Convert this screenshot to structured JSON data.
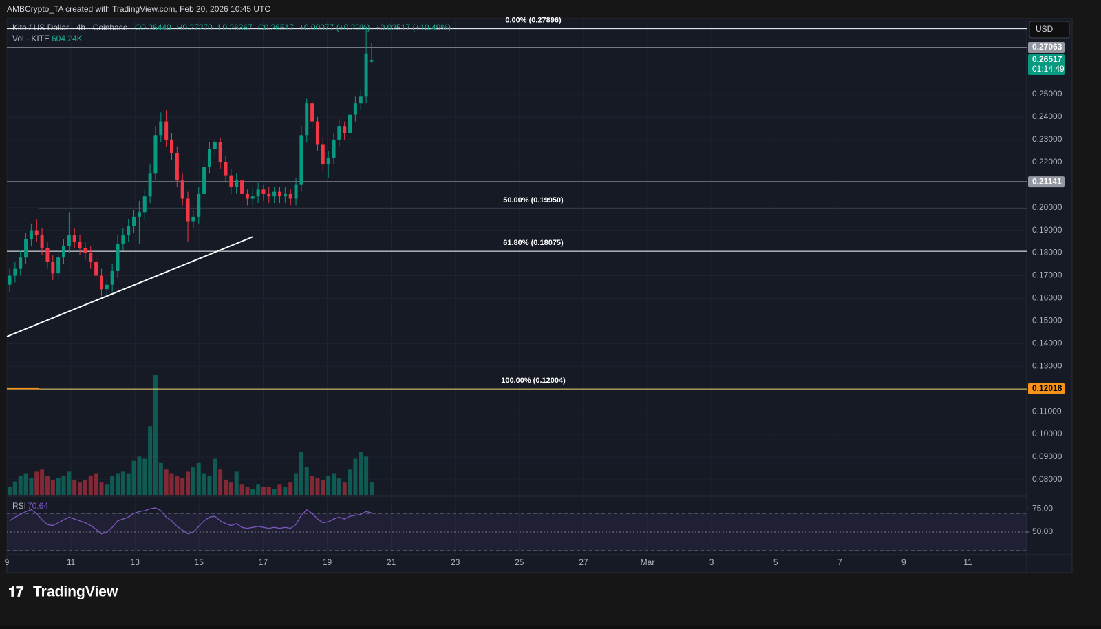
{
  "header": {
    "credit": "AMBCrypto_TA created with TradingView.com, Feb 20, 2026 10:45 UTC",
    "symbol": "Kite / US Dollar · 4h · Coinbase",
    "ohlc": [
      "O0.26440",
      "H0.27270",
      "L0.26367",
      "C0.26517",
      "+0.00077 (+0.29%)",
      "+0.02517 (+10.49%)"
    ],
    "volume_title": "Vol · KITE",
    "currency": "USD"
  },
  "chart_data": {
    "type": "candlestick",
    "open": [
      0.166,
      0.17,
      0.173,
      0.178,
      0.186,
      0.19,
      0.188,
      0.182,
      0.176,
      0.171,
      0.178,
      0.183,
      0.188,
      0.185,
      0.182,
      0.18,
      0.176,
      0.17,
      0.164,
      0.166,
      0.172,
      0.184,
      0.188,
      0.192,
      0.196,
      0.198,
      0.205,
      0.215,
      0.232,
      0.238,
      0.23,
      0.224,
      0.212,
      0.204,
      0.194,
      0.196,
      0.206,
      0.218,
      0.226,
      0.229,
      0.22,
      0.214,
      0.209,
      0.212,
      0.206,
      0.204,
      0.205,
      0.208,
      0.206,
      0.205,
      0.207,
      0.205,
      0.206,
      0.204,
      0.21,
      0.232,
      0.246,
      0.238,
      0.228,
      0.219,
      0.222,
      0.23,
      0.236,
      0.233,
      0.241,
      0.246,
      0.249,
      0.2644
    ],
    "high": [
      0.173,
      0.176,
      0.181,
      0.189,
      0.193,
      0.195,
      0.191,
      0.185,
      0.179,
      0.181,
      0.186,
      0.198,
      0.191,
      0.188,
      0.185,
      0.183,
      0.179,
      0.173,
      0.169,
      0.175,
      0.188,
      0.191,
      0.195,
      0.199,
      0.203,
      0.208,
      0.219,
      0.236,
      0.242,
      0.243,
      0.233,
      0.227,
      0.215,
      0.207,
      0.199,
      0.209,
      0.221,
      0.229,
      0.23,
      0.231,
      0.223,
      0.217,
      0.215,
      0.214,
      0.208,
      0.209,
      0.211,
      0.21,
      0.209,
      0.209,
      0.209,
      0.209,
      0.208,
      0.213,
      0.236,
      0.248,
      0.247,
      0.24,
      0.231,
      0.225,
      0.233,
      0.239,
      0.238,
      0.244,
      0.249,
      0.252,
      0.27896,
      0.2727
    ],
    "low": [
      0.163,
      0.167,
      0.17,
      0.175,
      0.183,
      0.185,
      0.179,
      0.173,
      0.168,
      0.168,
      0.175,
      0.18,
      0.182,
      0.179,
      0.177,
      0.173,
      0.167,
      0.161,
      0.16,
      0.163,
      0.169,
      0.181,
      0.185,
      0.189,
      0.184,
      0.195,
      0.202,
      0.212,
      0.229,
      0.227,
      0.221,
      0.209,
      0.201,
      0.185,
      0.191,
      0.193,
      0.203,
      0.215,
      0.223,
      0.217,
      0.211,
      0.206,
      0.206,
      0.2,
      0.201,
      0.201,
      0.202,
      0.203,
      0.202,
      0.202,
      0.202,
      0.202,
      0.201,
      0.201,
      0.207,
      0.229,
      0.235,
      0.225,
      0.216,
      0.213,
      0.219,
      0.227,
      0.23,
      0.229,
      0.238,
      0.243,
      0.246,
      0.26367
    ],
    "close": [
      0.17,
      0.173,
      0.178,
      0.186,
      0.19,
      0.188,
      0.182,
      0.176,
      0.171,
      0.178,
      0.183,
      0.188,
      0.185,
      0.182,
      0.18,
      0.176,
      0.17,
      0.164,
      0.166,
      0.172,
      0.184,
      0.188,
      0.192,
      0.196,
      0.198,
      0.205,
      0.215,
      0.232,
      0.238,
      0.23,
      0.224,
      0.212,
      0.204,
      0.194,
      0.196,
      0.206,
      0.218,
      0.226,
      0.229,
      0.22,
      0.214,
      0.209,
      0.212,
      0.206,
      0.204,
      0.205,
      0.208,
      0.206,
      0.205,
      0.207,
      0.205,
      0.206,
      0.204,
      0.21,
      0.232,
      0.246,
      0.238,
      0.228,
      0.219,
      0.222,
      0.23,
      0.236,
      0.233,
      0.241,
      0.246,
      0.249,
      0.268,
      0.26517
    ],
    "volume": [
      400000,
      650000,
      900000,
      1000000,
      800000,
      1100000,
      1200000,
      900000,
      700000,
      800000,
      900000,
      1100000,
      700000,
      600000,
      700000,
      900000,
      1000000,
      600000,
      500000,
      900000,
      1000000,
      1100000,
      1000000,
      1600000,
      1800000,
      1700000,
      3200000,
      5560000,
      1500000,
      1200000,
      1000000,
      900000,
      800000,
      1100000,
      1300000,
      1500000,
      1000000,
      900000,
      1700000,
      1200000,
      700000,
      600000,
      1100000,
      500000,
      400000,
      300000,
      500000,
      400000,
      400000,
      300000,
      500000,
      400000,
      600000,
      1000000,
      2000000,
      1300000,
      900000,
      800000,
      700000,
      900000,
      1000000,
      800000,
      600000,
      1200000,
      1700000,
      2000000,
      1800000,
      604240
    ],
    "volume_label": "604.24K",
    "up_color": "#089981",
    "down_color": "#f23645",
    "ylim": [
      0.073,
      0.2834
    ],
    "yticks": [
      {
        "value": 0.08,
        "label": "0.08000"
      },
      {
        "value": 0.09,
        "label": "0.09000"
      },
      {
        "value": 0.1,
        "label": "0.10000"
      },
      {
        "value": 0.11,
        "label": "0.11000"
      },
      {
        "value": 0.12,
        "label": "0.12000"
      },
      {
        "value": 0.13,
        "label": "0.13000"
      },
      {
        "value": 0.14,
        "label": "0.14000"
      },
      {
        "value": 0.15,
        "label": "0.15000"
      },
      {
        "value": 0.16,
        "label": "0.16000"
      },
      {
        "value": 0.17,
        "label": "0.17000"
      },
      {
        "value": 0.18,
        "label": "0.18000"
      },
      {
        "value": 0.19,
        "label": "0.19000"
      },
      {
        "value": 0.2,
        "label": "0.20000"
      },
      {
        "value": 0.22,
        "label": "0.22000"
      },
      {
        "value": 0.23,
        "label": "0.23000"
      },
      {
        "value": 0.24,
        "label": "0.24000"
      },
      {
        "value": 0.25,
        "label": "0.25000"
      }
    ],
    "x_labels": [
      "9",
      "11",
      "13",
      "15",
      "17",
      "19",
      "21",
      "23",
      "25",
      "27",
      "Mar",
      "3",
      "5",
      "7",
      "9",
      "11"
    ],
    "levels": [
      {
        "value": 0.27896,
        "label": "0.00% (0.27896)",
        "color": "#ffffff"
      },
      {
        "value": 0.1995,
        "label": "50.00% (0.19950)",
        "color": "#ffffff"
      },
      {
        "value": 0.18075,
        "label": "61.80% (0.18075)",
        "color": "#ffffff"
      },
      {
        "value": 0.12004,
        "label": "100.00% (0.12004)",
        "color": "#f5d76e"
      }
    ],
    "price_tags": [
      {
        "value": 0.27063,
        "color": "#9598a1"
      },
      {
        "value": 0.21141,
        "color": "#9598a1"
      },
      {
        "value": 0.12018,
        "color": "#f7931a"
      },
      {
        "value": 0.26517,
        "color": "#089981"
      }
    ],
    "countdown": "01:14:49",
    "rsi": {
      "title": "RSI",
      "color": "#7e57c2",
      "values": [
        62,
        66,
        69,
        72,
        74,
        70,
        63,
        58,
        57,
        60,
        63,
        66,
        64,
        62,
        60,
        57,
        53,
        48,
        50,
        55,
        62,
        64,
        66,
        70,
        72,
        73,
        75,
        76,
        73,
        66,
        62,
        56,
        52,
        48,
        50,
        56,
        62,
        66,
        67,
        62,
        59,
        57,
        59,
        55,
        54,
        55,
        56,
        55,
        54,
        55,
        54,
        55,
        54,
        58,
        68,
        74,
        70,
        64,
        60,
        61,
        64,
        66,
        64,
        67,
        68,
        69,
        72,
        70.64
      ],
      "ylim": [
        26.3,
        87.8
      ],
      "yticks": [
        {
          "value": 75,
          "label": "75.00"
        },
        {
          "value": 50,
          "label": "50.00"
        }
      ],
      "bands": [
        70,
        30,
        50
      ]
    }
  },
  "footer": {
    "brand": "TradingView"
  }
}
